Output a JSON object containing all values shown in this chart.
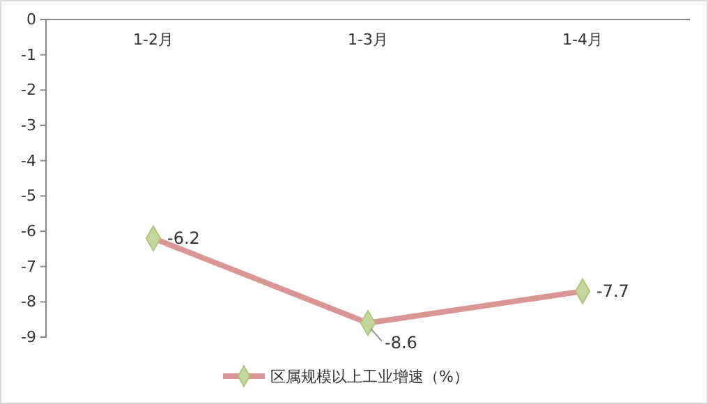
{
  "chart_data": {
    "type": "line",
    "categories": [
      "1-2月",
      "1-3月",
      "1-4月"
    ],
    "series": [
      {
        "name": "区属规模以上工业增速（%）",
        "color": "#d99694",
        "values": [
          -6.2,
          -8.6,
          -7.7
        ]
      }
    ],
    "ylim": [
      -9,
      0
    ],
    "yticks": [
      0,
      -1,
      -2,
      -3,
      -4,
      -5,
      -6,
      -7,
      -8,
      -9
    ],
    "grid": false,
    "legend": "bottom",
    "marker": "diamond",
    "line_style": "solid",
    "data_labels": true
  }
}
